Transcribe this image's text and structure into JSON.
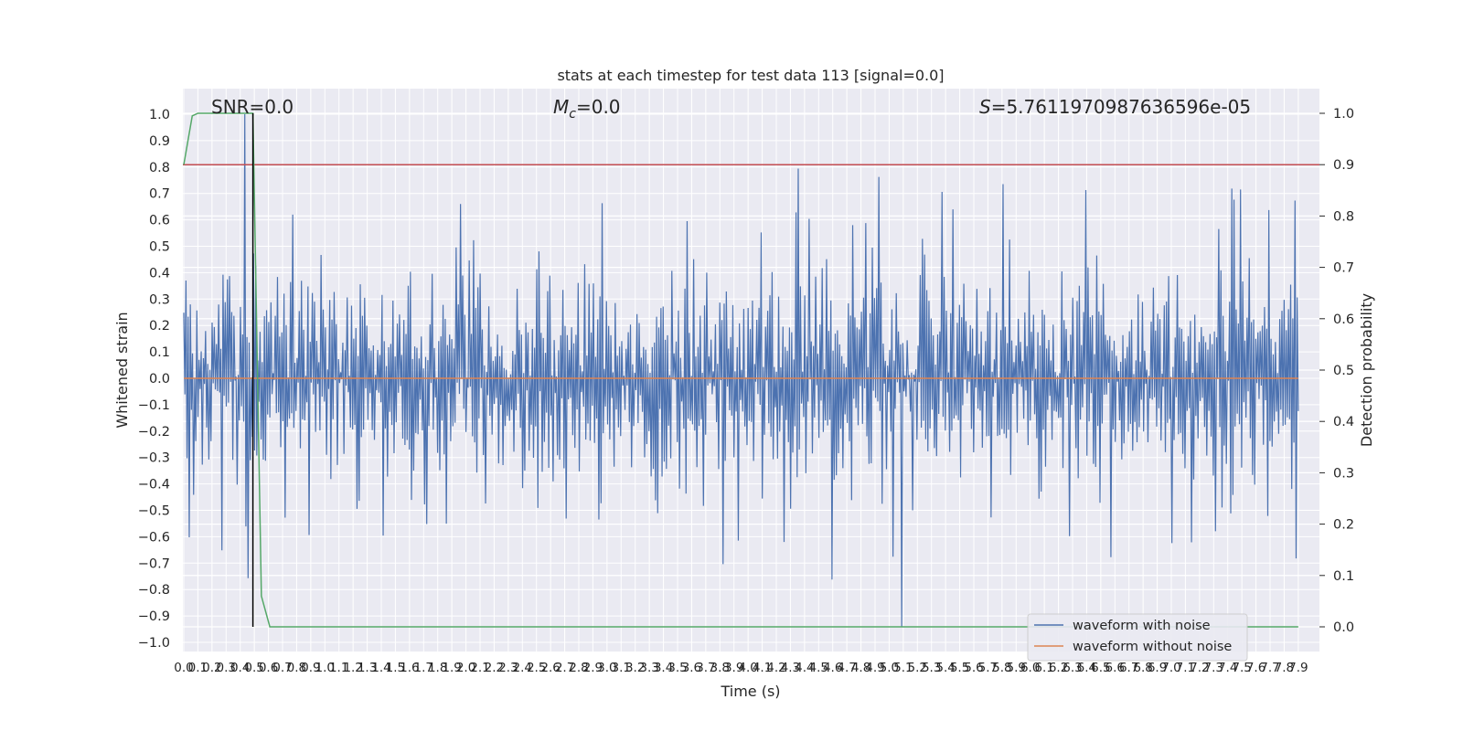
{
  "chart_data": {
    "type": "line",
    "title": "stats at each timestep for test data 113 [signal=0.0]",
    "xlabel": "Time (s)",
    "ylabel": "Whitened strain",
    "y2label": "Detection probability",
    "xlim": [
      0.0,
      7.9
    ],
    "ylim": [
      -1.02,
      1.02
    ],
    "y2lim": [
      -0.02,
      1.02
    ],
    "xticks": [
      0.0,
      0.1,
      0.2,
      0.3,
      0.4,
      0.5,
      0.6,
      0.7,
      0.8,
      0.9,
      1.0,
      1.1,
      1.2,
      1.3,
      1.4,
      1.5,
      1.6,
      1.7,
      1.8,
      1.9,
      2.0,
      2.1,
      2.2,
      2.3,
      2.4,
      2.5,
      2.6,
      2.7,
      2.8,
      2.9,
      3.0,
      3.1,
      3.2,
      3.3,
      3.4,
      3.5,
      3.6,
      3.7,
      3.8,
      3.9,
      4.0,
      4.1,
      4.2,
      4.3,
      4.4,
      4.5,
      4.6,
      4.7,
      4.8,
      4.9,
      5.0,
      5.1,
      5.2,
      5.3,
      5.4,
      5.5,
      5.6,
      5.7,
      5.8,
      5.9,
      6.0,
      6.1,
      6.2,
      6.3,
      6.4,
      6.5,
      6.6,
      6.7,
      6.8,
      6.9,
      7.0,
      7.1,
      7.2,
      7.3,
      7.4,
      7.5,
      7.6,
      7.7,
      7.8,
      7.9
    ],
    "xtick_labels": [
      "0.0",
      "0.1",
      "0.2",
      "0.3",
      "0.4",
      "0.5",
      "0.6",
      "0.7",
      "0.8",
      "0.9",
      "1.0",
      "1.1",
      "1.2",
      "1.3",
      "1.4",
      "1.5",
      "1.6",
      "1.7",
      "1.8",
      "1.9",
      "2.0",
      "2.1",
      "2.2",
      "2.3",
      "2.4",
      "2.5",
      "2.6",
      "2.7",
      "2.8",
      "2.9",
      "3.0",
      "3.1",
      "3.2",
      "3.3",
      "3.4",
      "3.5",
      "3.6",
      "3.7",
      "3.8",
      "3.9",
      "4.0",
      "4.1",
      "4.2",
      "4.3",
      "4.4",
      "4.5",
      "4.6",
      "4.7",
      "4.8",
      "4.9",
      "5.0",
      "5.1",
      "5.2",
      "5.3",
      "5.4",
      "5.5",
      "5.6",
      "5.7",
      "5.8",
      "5.9",
      "6.0",
      "6.1",
      "6.2",
      "6.3",
      "6.4",
      "6.5",
      "6.6",
      "6.7",
      "6.8",
      "6.9",
      "7.0",
      "7.1",
      "7.2",
      "7.3",
      "7.4",
      "7.5",
      "7.6",
      "7.7",
      "7.8",
      "7.9"
    ],
    "yticks": [
      1.0,
      0.9,
      0.8,
      0.7,
      0.6,
      0.5,
      0.4,
      0.3,
      0.2,
      0.1,
      0.0,
      -0.1,
      -0.2,
      -0.3,
      -0.4,
      -0.5,
      -0.6,
      -0.7,
      -0.8,
      -0.9,
      -1.0
    ],
    "ytick_labels": [
      "1.0",
      "0.9",
      "0.8",
      "0.7",
      "0.6",
      "0.5",
      "0.4",
      "0.3",
      "0.2",
      "0.1",
      "0.0",
      "−0.1",
      "−0.2",
      "−0.3",
      "−0.4",
      "−0.5",
      "−0.6",
      "−0.7",
      "−0.8",
      "−0.9",
      "−1.0"
    ],
    "y2ticks": [
      1.0,
      0.9,
      0.8,
      0.7,
      0.6,
      0.5,
      0.4,
      0.3,
      0.2,
      0.1,
      0.0
    ],
    "y2tick_labels": [
      "1.0",
      "0.9",
      "0.8",
      "0.7",
      "0.6",
      "0.5",
      "0.4",
      "0.3",
      "0.2",
      "0.1",
      "0.0"
    ],
    "annotations": {
      "snr": "SNR=0.0",
      "mc": "=0.0",
      "s": "=5.7611970987636596e-05"
    },
    "series": [
      {
        "name": "waveform with noise",
        "color": "#4c72b0",
        "axis": "left",
        "noise_envelope": {
          "typical_peak_abs": 0.42,
          "max_value": 1.0,
          "min_value": -0.94,
          "samples": 1024
        }
      },
      {
        "name": "waveform without noise",
        "color": "#dd8452",
        "axis": "left",
        "x": [
          0.0,
          7.9
        ],
        "y": [
          0.0,
          0.0
        ]
      },
      {
        "color": "#55a868",
        "axis": "right",
        "x": [
          0.0,
          0.06,
          0.1,
          0.49,
          0.55,
          0.61,
          7.9
        ],
        "y": [
          0.9,
          0.995,
          1.0,
          1.0,
          0.06,
          0.0,
          0.0
        ]
      }
    ],
    "threshold": {
      "color": "#c44e52",
      "axis": "right",
      "value": 0.9
    },
    "marker": {
      "color": "#000000",
      "x": 0.49
    },
    "grid": true,
    "legend_position": "lower right"
  }
}
